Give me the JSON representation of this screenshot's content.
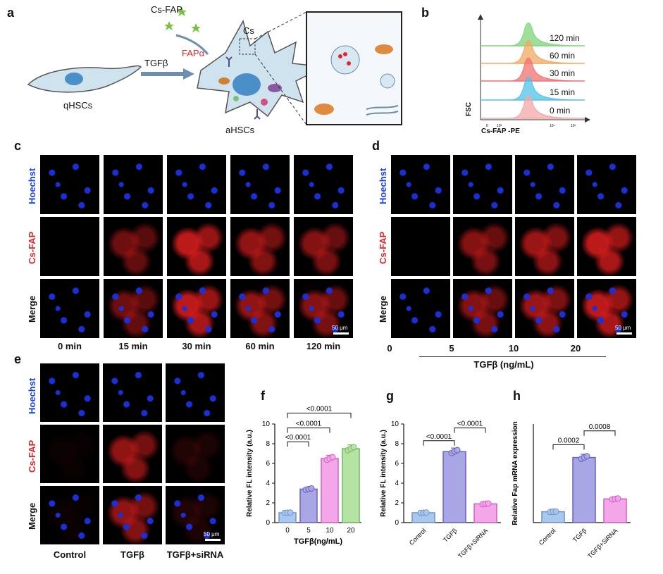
{
  "panels": {
    "a": "a",
    "b": "b",
    "c": "c",
    "d": "d",
    "e": "e",
    "f": "f",
    "g": "g",
    "h": "h"
  },
  "schematic": {
    "cs_fap": "Cs-FAP",
    "cs": "Cs",
    "tgfb": "TGFβ",
    "fapa": "FAPα",
    "qhscs": "qHSCs",
    "ahscs": "aHSCs"
  },
  "flow": {
    "ylabel": "FSC",
    "xlabel": "Cs-FAP -PE",
    "ticks": [
      "0",
      "10³",
      "10⁴",
      "10⁵"
    ],
    "series": [
      {
        "name": "120 min",
        "color": "#7ed67a"
      },
      {
        "name": "60 min",
        "color": "#f0a860"
      },
      {
        "name": "30 min",
        "color": "#f07070"
      },
      {
        "name": "15 min",
        "color": "#4fc3e8"
      },
      {
        "name": "0 min",
        "color": "#f2a7a7"
      }
    ]
  },
  "panel_c": {
    "rows": [
      "Hoechst",
      "Cs-FAP",
      "Merge"
    ],
    "cols": [
      "0 min",
      "15 min",
      "30 min",
      "60 min",
      "120 min"
    ],
    "scale": "50 μm"
  },
  "panel_d": {
    "rows": [
      "Hoechst",
      "Cs-FAP",
      "Merge"
    ],
    "cols": [
      "0",
      "5",
      "10",
      "20"
    ],
    "axis_title": "TGFβ (ng/mL)",
    "scale": "50 μm"
  },
  "panel_e": {
    "rows": [
      "Hoechst",
      "Cs-FAP",
      "Merge"
    ],
    "cols": [
      "Control",
      "TGFβ",
      "TGFβ+siRNA"
    ],
    "scale": "50 μm"
  },
  "chart_data": [
    {
      "type": "bar",
      "panel": "f",
      "categories": [
        "0",
        "5",
        "10",
        "20"
      ],
      "values": [
        1.0,
        3.4,
        6.5,
        7.5
      ],
      "colors": [
        "#aac8ee",
        "#a9a6e6",
        "#f4a7e8",
        "#b5e3a4"
      ],
      "edge": [
        "#6f94c9",
        "#6a62c0",
        "#d15fc6",
        "#74b65f"
      ],
      "xlabel": "TGFβ(ng/mL)",
      "ylabel": "Relative FL intensity  (a.u.)",
      "ylim": [
        0,
        10
      ],
      "yticks": [
        0,
        2,
        4,
        6,
        8,
        10
      ],
      "comparisons": [
        {
          "from": 0,
          "to": 1,
          "p": "<0.0001",
          "y": 8.2
        },
        {
          "from": 0,
          "to": 2,
          "p": "<0.0001",
          "y": 9.6
        },
        {
          "from": 0,
          "to": 3,
          "p": "<0.0001",
          "y": 11.1
        }
      ]
    },
    {
      "type": "bar",
      "panel": "g",
      "categories": [
        "Control",
        "TGFβ",
        "TGFβ+SiRNA"
      ],
      "values": [
        1.0,
        7.2,
        1.9
      ],
      "colors": [
        "#aac8ee",
        "#a9a6e6",
        "#f4a7e8"
      ],
      "edge": [
        "#6f94c9",
        "#6a62c0",
        "#d15fc6"
      ],
      "xlabel": "",
      "ylabel": "Relative FL intensity (a.u.)",
      "ylim": [
        0,
        10
      ],
      "yticks": [
        0,
        2,
        4,
        6,
        8,
        10
      ],
      "comparisons": [
        {
          "from": 0,
          "to": 1,
          "p": "<0.0001",
          "y": 8.3
        },
        {
          "from": 1,
          "to": 2,
          "p": "<0.0001",
          "y": 9.6
        }
      ]
    },
    {
      "type": "bar",
      "panel": "h",
      "categories": [
        "Control",
        "TGFβ",
        "TGFβ+SiRNA"
      ],
      "values": [
        1.1,
        6.6,
        2.4
      ],
      "colors": [
        "#aac8ee",
        "#a9a6e6",
        "#f4a7e8"
      ],
      "edge": [
        "#6f94c9",
        "#6a62c0",
        "#d15fc6"
      ],
      "xlabel": "",
      "ylabel": "Relative Fap mRNA expression",
      "ylim": [
        0,
        10
      ],
      "yticks": [],
      "comparisons": [
        {
          "from": 0,
          "to": 1,
          "p": "0.0002",
          "y": 7.9
        },
        {
          "from": 1,
          "to": 2,
          "p": "0.0008",
          "y": 9.3
        }
      ]
    }
  ]
}
